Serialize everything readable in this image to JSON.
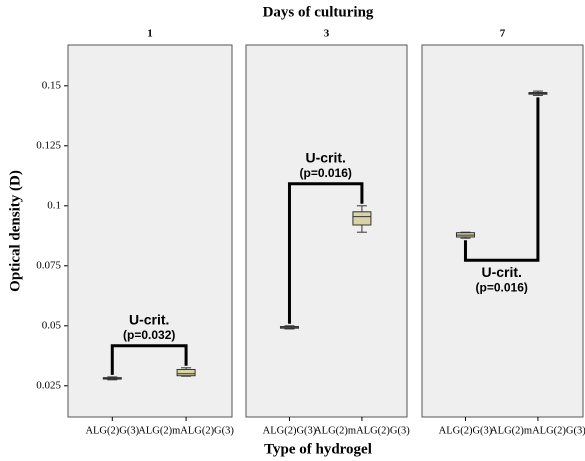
{
  "chart_data": {
    "type": "box",
    "title": "Days of culturing",
    "xlabel": "Type of hydrogel",
    "ylabel": "Optical density (D)",
    "ylim": [
      0.012,
      0.167
    ],
    "yticks": [
      0.025,
      0.05,
      0.075,
      0.1,
      0.125,
      0.15
    ],
    "color": "#d9d3a5",
    "panel_color": "#efefef",
    "panels": [
      {
        "title": "1",
        "categories": [
          "ALG(2)G(3)",
          "ALG(2)mALG(2)G(3)"
        ],
        "boxes": [
          {
            "min": 0.0275,
            "q1": 0.0278,
            "median": 0.0281,
            "q3": 0.0284,
            "max": 0.0287
          },
          {
            "min": 0.029,
            "q1": 0.0292,
            "median": 0.03,
            "q3": 0.0318,
            "max": 0.0325
          }
        ],
        "annotation": [
          "U-crit.",
          "(p=0.032)"
        ],
        "bracket": "above"
      },
      {
        "title": "3",
        "categories": [
          "ALG(2)G(3)",
          "ALG(2)mALG(2)G(3)"
        ],
        "boxes": [
          {
            "min": 0.0487,
            "q1": 0.049,
            "median": 0.0494,
            "q3": 0.0497,
            "max": 0.05
          },
          {
            "min": 0.089,
            "q1": 0.092,
            "median": 0.0955,
            "q3": 0.0975,
            "max": 0.1
          }
        ],
        "annotation": [
          "U-crit.",
          "(p=0.016)"
        ],
        "bracket": "above"
      },
      {
        "title": "7",
        "categories": [
          "ALG(2)G(3)",
          "ALG(2)mALG(2)G(3)"
        ],
        "boxes": [
          {
            "min": 0.0865,
            "q1": 0.087,
            "median": 0.0878,
            "q3": 0.0888,
            "max": 0.089
          },
          {
            "min": 0.146,
            "q1": 0.1465,
            "median": 0.1468,
            "q3": 0.1472,
            "max": 0.1478
          }
        ],
        "annotation": [
          "U-crit.",
          "(p=0.016)"
        ],
        "bracket": "below"
      }
    ]
  }
}
